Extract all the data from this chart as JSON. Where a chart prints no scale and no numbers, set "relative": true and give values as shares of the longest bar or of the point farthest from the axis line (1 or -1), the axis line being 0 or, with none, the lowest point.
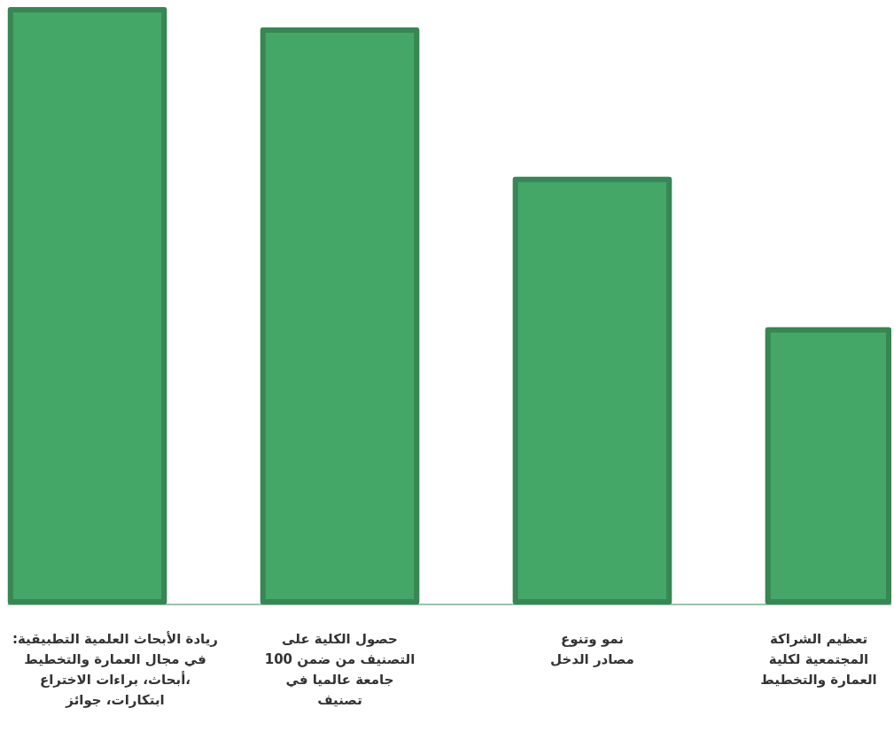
{
  "chart_data": {
    "type": "bar",
    "relative": true,
    "color": "#44a667",
    "categories": [
      "ريادة الأبحاث العلمية التطبيقية:\nفي مجال العمارة والتخطيط\n،أبحاث، براءات الاختراع\nابتكارات، جوائز",
      "حصول الكلية على\nالتصنيف من ضمن 100\nجامعة عالميا في\nتصنيف",
      "نمو وتنوع\nمصادر الدخل",
      "تعظيم الشراكة\nالمجتمعية لكلية\nالعمارة والتخطيط"
    ],
    "values": [
      1,
      0.966,
      0.716,
      0.464
    ]
  }
}
